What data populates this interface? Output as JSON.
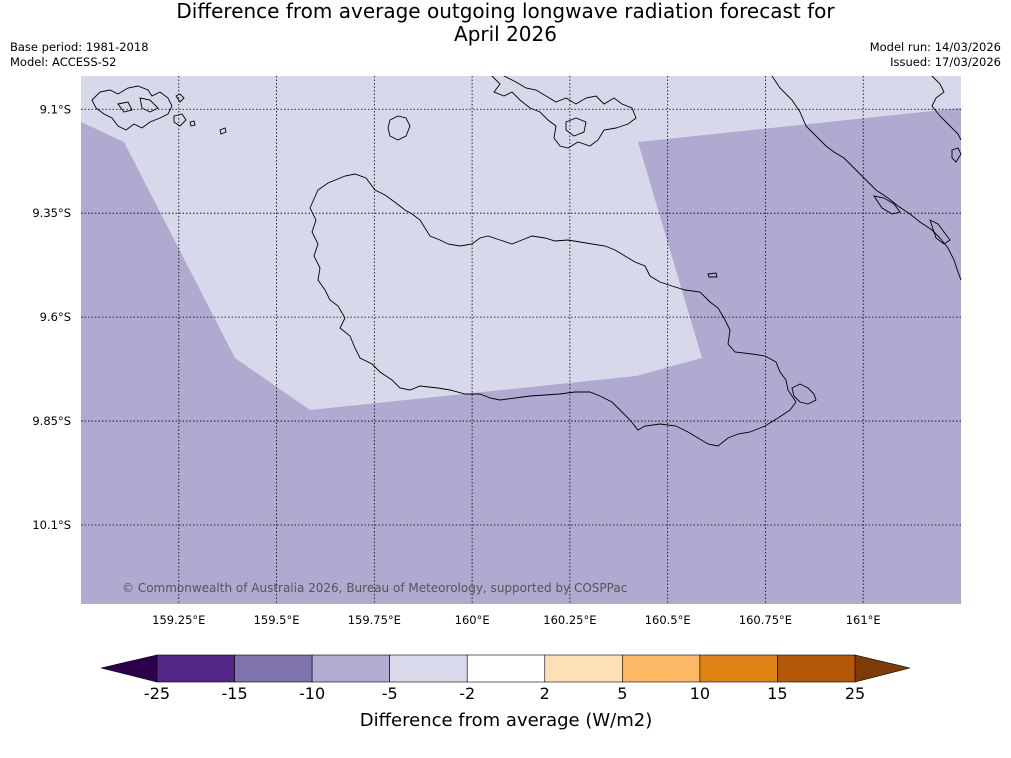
{
  "title": {
    "line1": "Difference from average outgoing longwave radiation forecast for",
    "line2": "April 2026"
  },
  "meta_left": {
    "base_period": "Base period: 1981-2018",
    "model": "Model: ACCESS-S2"
  },
  "meta_right": {
    "model_run": "Model run: 14/03/2026",
    "issued": "Issued: 17/03/2026"
  },
  "map": {
    "lat_range": [
      -10.29,
      -9.02
    ],
    "lon_range": [
      159.0,
      161.25
    ],
    "lat_gridlines": [
      -9.1,
      -9.35,
      -9.6,
      -9.85,
      -10.1
    ],
    "lon_gridlines": [
      159.25,
      159.5,
      159.75,
      160.0,
      160.25,
      160.5,
      160.75,
      161.0
    ],
    "lat_labels": [
      "9.1°S",
      "9.35°S",
      "9.6°S",
      "9.85°S",
      "10.1°S"
    ],
    "lon_labels": [
      "159.25°E",
      "159.5°E",
      "159.75°E",
      "160°E",
      "160.25°E",
      "160.5°E",
      "160.75°E",
      "161°E"
    ],
    "background_class": "-10 to -5",
    "overlay_class": "-5 to -2",
    "copyright": "© Commonwealth of Australia 2026, Bureau of Meteorology, supported by COSPPac"
  },
  "colorbar": {
    "title": "Difference from average (W/m2)",
    "ticks": [
      "-25",
      "-15",
      "-10",
      "-5",
      "-2",
      "2",
      "5",
      "10",
      "15",
      "25"
    ],
    "under_color": "#2d004b",
    "over_color": "#7f3b08",
    "colors": [
      "#542788",
      "#8073ac",
      "#b2abd2",
      "#d8daeb",
      "#ffffff",
      "#fee0b6",
      "#fdb863",
      "#e08214",
      "#b35806"
    ]
  },
  "colors": {
    "background_fill": "#b0aad0",
    "overlay_fill": "#d7d8ea",
    "coastline": "#000000"
  }
}
